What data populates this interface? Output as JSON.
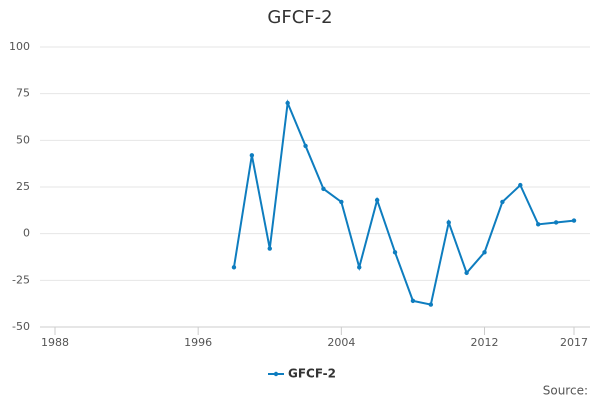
{
  "chart_data": {
    "type": "line",
    "title": "GFCF-2",
    "x": [
      1998,
      1999,
      2000,
      2001,
      2002,
      2003,
      2004,
      2005,
      2006,
      2007,
      2008,
      2009,
      2010,
      2011,
      2012,
      2013,
      2014,
      2015,
      2016,
      2017
    ],
    "series": [
      {
        "name": "GFCF-2",
        "color": "#0e7dbf",
        "values": [
          -18,
          42,
          -8,
          70,
          47,
          24,
          17,
          -18,
          18,
          -10,
          -36,
          -38,
          6,
          -21,
          -10,
          17,
          26,
          5,
          6,
          7
        ]
      }
    ],
    "xlim": [
      1988,
      2017
    ],
    "xticks": [
      1988,
      1996,
      2004,
      2012,
      2017
    ],
    "ylim": [
      -50,
      100
    ],
    "yticks": [
      -50,
      -25,
      0,
      25,
      50,
      75,
      100
    ],
    "grid": true,
    "legend": "bottom",
    "source": "Source:"
  }
}
